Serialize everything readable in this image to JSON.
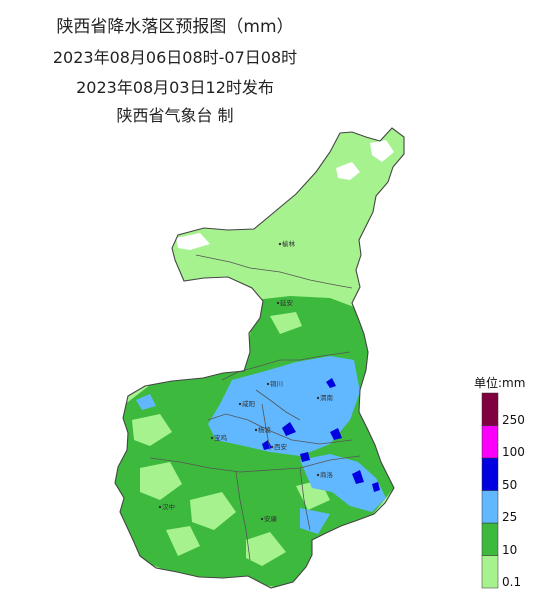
{
  "title": {
    "line1": "陕西省降水落区预报图（mm）",
    "line2": "2023年08月06日08时-07日08时",
    "line3": "2023年08月03日12时发布",
    "line4": "陕西省气象台 制"
  },
  "cities": [
    {
      "name": "榆林"
    },
    {
      "name": "延安"
    },
    {
      "name": "铜川"
    },
    {
      "name": "渭南"
    },
    {
      "name": "咸阳"
    },
    {
      "name": "宝鸡"
    },
    {
      "name": "西安"
    },
    {
      "name": "杨凌"
    },
    {
      "name": "商洛"
    },
    {
      "name": "汉中"
    },
    {
      "name": "安康"
    }
  ],
  "legend": {
    "title": "单位:mm",
    "levels": [
      {
        "label": "0.1",
        "color": "#a6f28f"
      },
      {
        "label": "10",
        "color": "#3dba3d"
      },
      {
        "label": "25",
        "color": "#61b8ff"
      },
      {
        "label": "50",
        "color": "#0000e1"
      },
      {
        "label": "100",
        "color": "#fa00fa"
      },
      {
        "label": "250",
        "color": "#800040"
      }
    ]
  },
  "colors": {
    "no_rain": "#ffffff",
    "boundary": "#555555"
  }
}
